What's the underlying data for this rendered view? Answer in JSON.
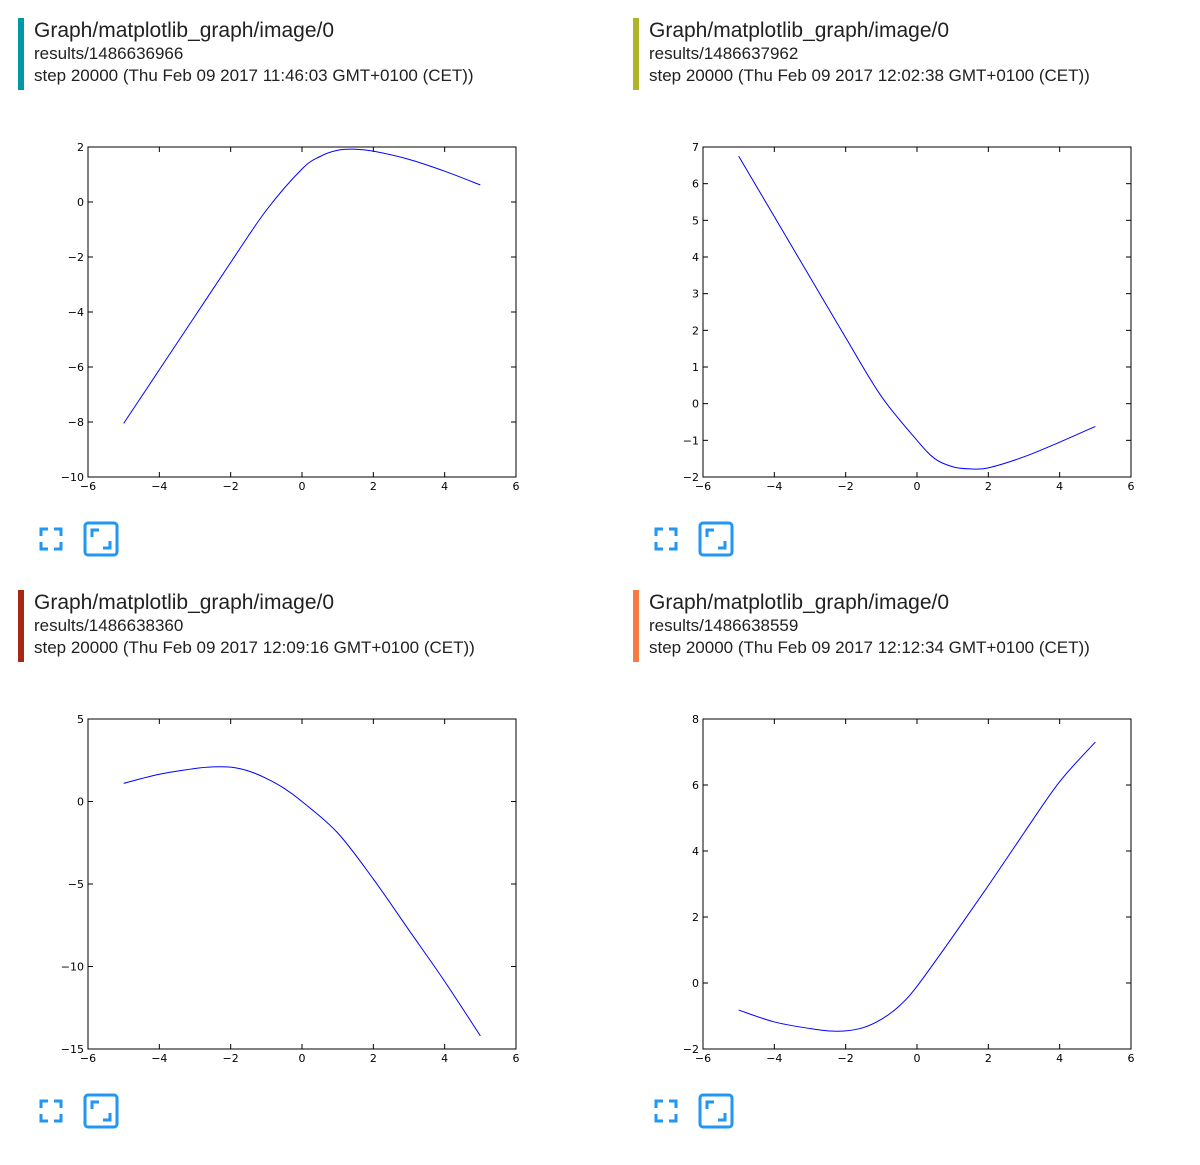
{
  "cards": [
    {
      "title": "Graph/matplotlib_graph/image/0",
      "run": "results/1486636966",
      "step": "step 20000 (Thu Feb 09 2017 11:46:03 GMT+0100 (CET))",
      "color": "#0097a7"
    },
    {
      "title": "Graph/matplotlib_graph/image/0",
      "run": "results/1486637962",
      "step": "step 20000 (Thu Feb 09 2017 12:02:38 GMT+0100 (CET))",
      "color": "#afb42b"
    },
    {
      "title": "Graph/matplotlib_graph/image/0",
      "run": "results/1486638360",
      "step": "step 20000 (Thu Feb 09 2017 12:09:16 GMT+0100 (CET))",
      "color": "#a52714"
    },
    {
      "title": "Graph/matplotlib_graph/image/0",
      "run": "results/1486638559",
      "step": "step 20000 (Thu Feb 09 2017 12:12:34 GMT+0100 (CET))",
      "color": "#f57c42"
    }
  ],
  "icons": {
    "fit_to_card": "fullscreen-icon",
    "actual_size": "actual-size-icon",
    "icon_color": "#2196f3"
  },
  "chart_data": [
    {
      "type": "line",
      "xlim": [
        -6,
        6
      ],
      "ylim": [
        -10,
        2
      ],
      "xticks": [
        -6,
        -4,
        -2,
        0,
        2,
        4,
        6
      ],
      "yticks": [
        -10,
        -8,
        -6,
        -4,
        -2,
        0,
        2
      ],
      "line_color": "#0000ff",
      "series": [
        {
          "x": [
            -5,
            -4,
            -3,
            -2,
            -1,
            0,
            0.5,
            1,
            1.5,
            2,
            3,
            4,
            5
          ],
          "y": [
            -8.05,
            -6.1,
            -4.15,
            -2.2,
            -0.3,
            1.2,
            1.65,
            1.88,
            1.92,
            1.85,
            1.55,
            1.12,
            0.62
          ]
        }
      ]
    },
    {
      "type": "line",
      "xlim": [
        -6,
        6
      ],
      "ylim": [
        -2,
        7
      ],
      "xticks": [
        -6,
        -4,
        -2,
        0,
        2,
        4,
        6
      ],
      "yticks": [
        -2,
        -1,
        0,
        1,
        2,
        3,
        4,
        5,
        6,
        7
      ],
      "line_color": "#0000ff",
      "series": [
        {
          "x": [
            -5,
            -4,
            -3,
            -2,
            -1,
            0,
            0.5,
            1,
            1.5,
            2,
            3,
            4,
            5
          ],
          "y": [
            6.75,
            5.1,
            3.45,
            1.8,
            0.2,
            -1.0,
            -1.5,
            -1.72,
            -1.78,
            -1.75,
            -1.45,
            -1.05,
            -0.62
          ]
        }
      ]
    },
    {
      "type": "line",
      "xlim": [
        -6,
        6
      ],
      "ylim": [
        -15,
        5
      ],
      "xticks": [
        -6,
        -4,
        -2,
        0,
        2,
        4,
        6
      ],
      "yticks": [
        -15,
        -10,
        -5,
        0,
        5
      ],
      "line_color": "#0000ff",
      "series": [
        {
          "x": [
            -5,
            -4,
            -3,
            -2.5,
            -2,
            -1.5,
            -1,
            -0.5,
            0,
            1,
            2,
            3,
            4,
            5
          ],
          "y": [
            1.1,
            1.65,
            2.0,
            2.1,
            2.08,
            1.85,
            1.4,
            0.8,
            0,
            -1.9,
            -4.7,
            -7.8,
            -10.9,
            -14.2
          ]
        }
      ]
    },
    {
      "type": "line",
      "xlim": [
        -6,
        6
      ],
      "ylim": [
        -2,
        8
      ],
      "xticks": [
        -6,
        -4,
        -2,
        0,
        2,
        4,
        6
      ],
      "yticks": [
        -2,
        0,
        2,
        4,
        6,
        8
      ],
      "line_color": "#0000ff",
      "series": [
        {
          "x": [
            -5,
            -4,
            -3,
            -2.5,
            -2,
            -1.5,
            -1,
            -0.5,
            0,
            1,
            2,
            3,
            4,
            5
          ],
          "y": [
            -0.82,
            -1.18,
            -1.38,
            -1.45,
            -1.45,
            -1.35,
            -1.1,
            -0.7,
            -0.1,
            1.4,
            2.95,
            4.55,
            6.1,
            7.3
          ]
        }
      ]
    }
  ]
}
